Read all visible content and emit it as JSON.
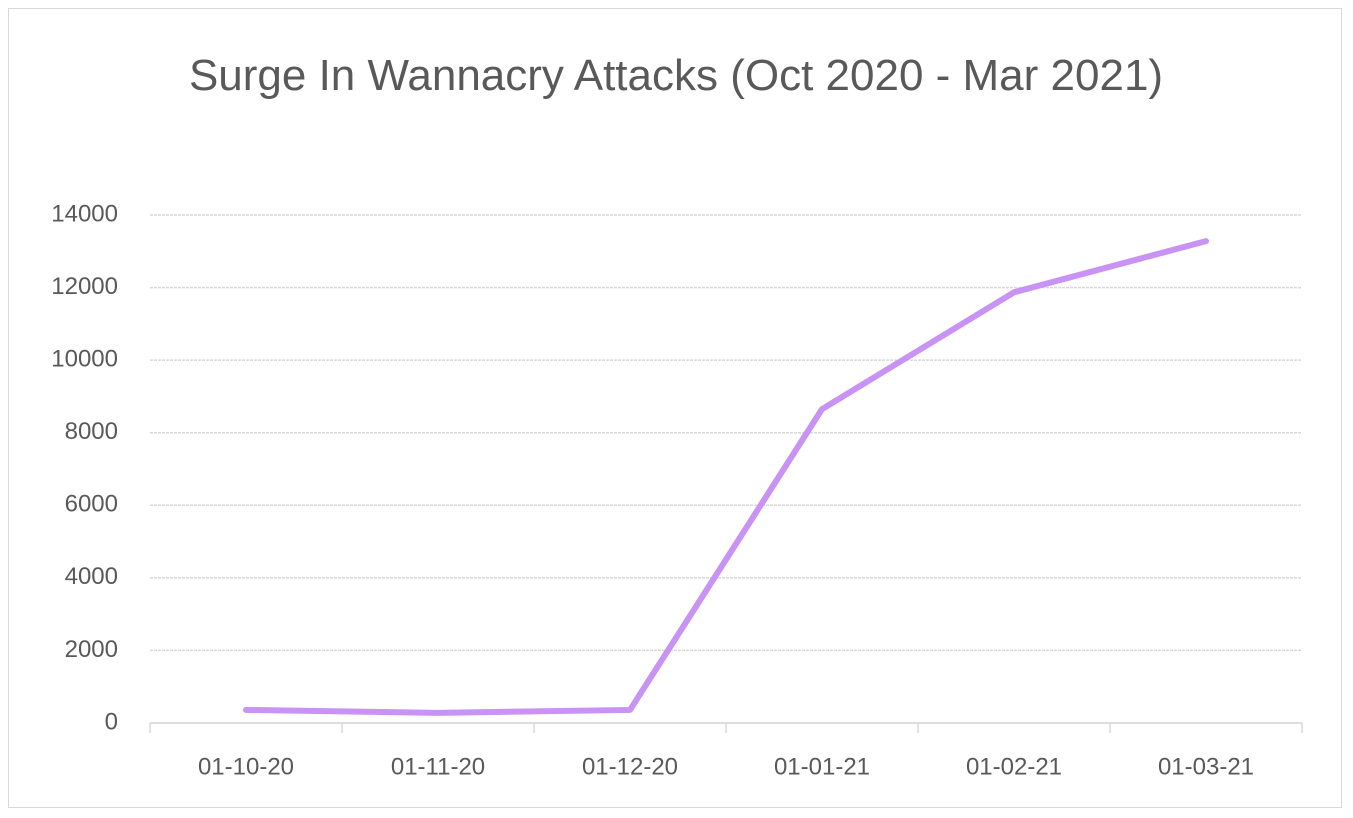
{
  "chart_data": {
    "type": "line",
    "title": "Surge In Wannacry Attacks (Oct 2020 - Mar 2021)",
    "categories": [
      "01-10-20",
      "01-11-20",
      "01-12-20",
      "01-01-21",
      "01-02-21",
      "01-03-21"
    ],
    "values": [
      360,
      280,
      360,
      8650,
      11870,
      13280
    ],
    "color": "#c893f5",
    "ylim": [
      0,
      14000
    ],
    "yticks": [
      0,
      2000,
      4000,
      6000,
      8000,
      10000,
      12000,
      14000
    ],
    "grid": true
  }
}
